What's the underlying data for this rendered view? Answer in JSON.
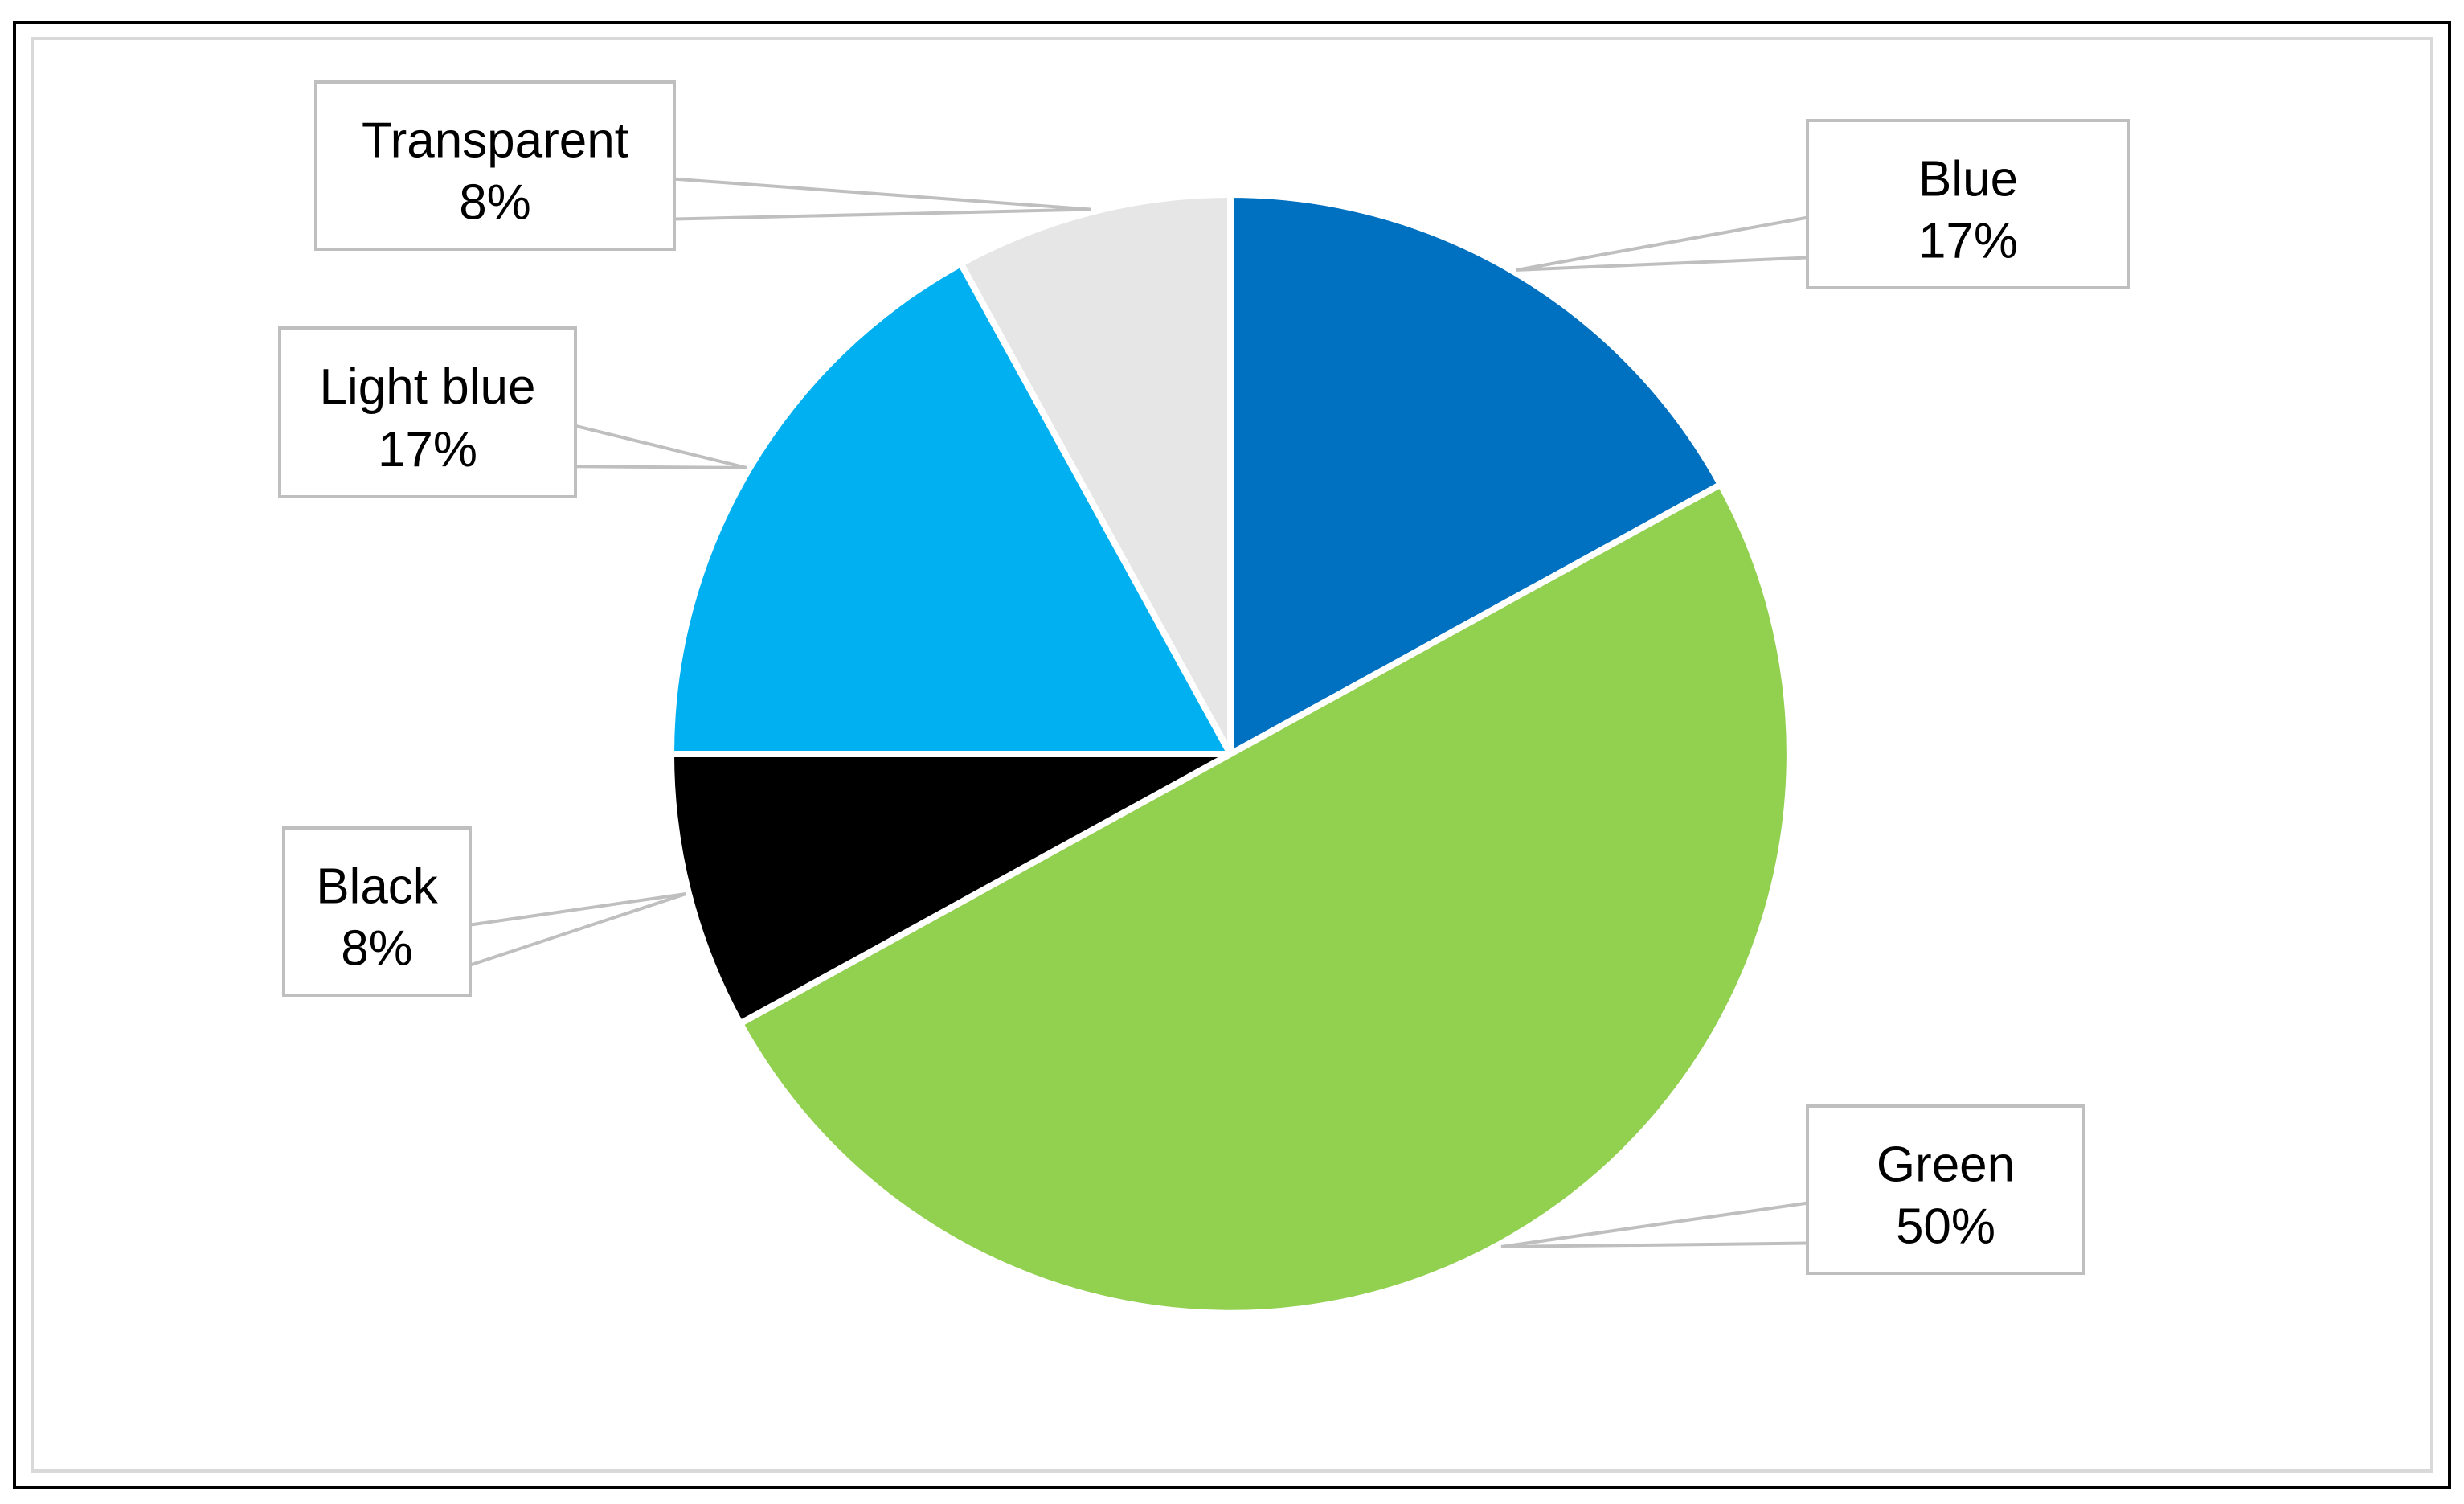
{
  "chart_data": {
    "type": "pie",
    "start_angle_deg": 0,
    "direction": "clockwise",
    "slices": [
      {
        "label": "Blue",
        "value": 17,
        "display": "17%",
        "color": "#0070C0"
      },
      {
        "label": "Green",
        "value": 50,
        "display": "50%",
        "color": "#92D050"
      },
      {
        "label": "Black",
        "value": 8,
        "display": "8%",
        "color": "#000000"
      },
      {
        "label": "Light blue",
        "value": 17,
        "display": "17%",
        "color": "#00B0F0"
      },
      {
        "label": "Transparent",
        "value": 8,
        "display": "8%",
        "color": "#E7E6E6"
      }
    ],
    "slice_border_color": "#ffffff",
    "title": "",
    "legend": "none",
    "data_labels": "callouts"
  },
  "frame": {
    "outer_border_color": "#000000",
    "inner_border_color": "#d9d9d9"
  }
}
